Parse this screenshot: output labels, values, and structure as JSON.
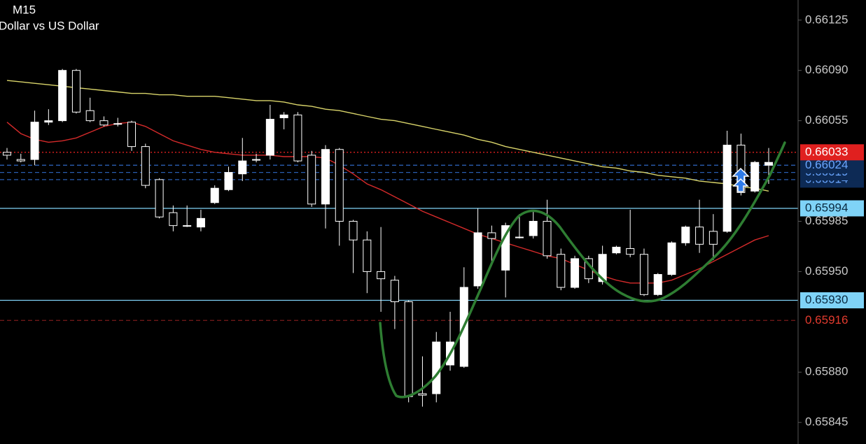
{
  "chart_data": {
    "type": "candlestick",
    "title": "M15",
    "subtitle": "Dollar vs US Dollar",
    "categories": [
      null,
      null,
      null,
      null,
      null,
      null,
      null,
      null,
      null,
      null,
      null,
      null,
      null,
      null,
      null,
      null,
      null,
      null,
      null,
      null,
      null,
      null,
      null,
      null,
      null,
      null,
      null,
      null,
      null,
      null,
      null,
      null,
      null,
      null,
      null,
      null,
      null,
      null,
      null,
      null,
      null,
      null,
      null,
      null,
      null,
      null,
      null,
      null,
      null,
      null,
      null,
      null,
      null,
      null,
      null,
      null
    ],
    "open": [
      0.66033,
      0.66028,
      0.66028,
      0.66054,
      0.66055,
      0.6609,
      0.66062,
      0.66055,
      0.66053,
      0.66054,
      0.66037,
      0.66014,
      0.65991,
      0.65982,
      0.65981,
      0.65998,
      0.66007,
      0.66018,
      0.66028,
      0.66031,
      0.66057,
      0.66059,
      0.66031,
      0.65997,
      0.66035,
      0.65985,
      0.65972,
      0.6595,
      0.65944,
      0.65929,
      0.65865,
      0.65865,
      0.65885,
      0.65884,
      0.6594,
      0.65977,
      0.65951,
      0.65974,
      0.65975,
      0.65985,
      0.65962,
      0.65939,
      0.65959,
      0.65943,
      0.65963,
      0.65966,
      0.65962,
      0.65934,
      0.65948,
      0.6597,
      0.65981,
      0.65978,
      0.65978,
      0.66038,
      0.66006,
      0.66024
    ],
    "high": [
      0.66036,
      0.66032,
      0.66062,
      0.66063,
      0.66091,
      0.66091,
      0.66071,
      0.66058,
      0.66057,
      0.66055,
      0.66039,
      0.66015,
      0.65996,
      0.65996,
      0.65993,
      0.6601,
      0.66023,
      0.66043,
      0.66032,
      0.66066,
      0.66061,
      0.66061,
      0.66034,
      0.66038,
      0.66036,
      0.65986,
      0.65978,
      0.65981,
      0.65947,
      0.6593,
      0.65891,
      0.65908,
      0.65922,
      0.65953,
      0.65994,
      0.65982,
      0.65984,
      0.6599,
      0.65993,
      0.66,
      0.65966,
      0.65961,
      0.65961,
      0.65968,
      0.65968,
      0.65993,
      0.65966,
      0.65949,
      0.65971,
      0.65982,
      0.66,
      0.6599,
      0.66048,
      0.66046,
      0.66027,
      0.66036
    ],
    "low": [
      0.66028,
      0.66026,
      0.66024,
      0.66052,
      0.66054,
      0.6606,
      0.66054,
      0.66051,
      0.66051,
      0.66034,
      0.66008,
      0.65987,
      0.65978,
      0.65981,
      0.65978,
      0.65997,
      0.66006,
      0.66013,
      0.66026,
      0.66028,
      0.66049,
      0.66026,
      0.65995,
      0.6598,
      0.65968,
      0.65949,
      0.65935,
      0.65922,
      0.6591,
      0.65859,
      0.65856,
      0.65859,
      0.65881,
      0.65883,
      0.65938,
      0.65954,
      0.65932,
      0.65973,
      0.65973,
      0.65959,
      0.65937,
      0.65938,
      0.65942,
      0.65941,
      0.65962,
      0.6596,
      0.65933,
      0.65933,
      0.65947,
      0.65968,
      0.65963,
      0.65958,
      0.65977,
      0.66003,
      0.66005,
      0.66011
    ],
    "close": [
      0.66031,
      0.66027,
      0.66054,
      0.66055,
      0.6609,
      0.66061,
      0.66055,
      0.66052,
      0.66053,
      0.66037,
      0.6601,
      0.65988,
      0.65982,
      0.65982,
      0.65987,
      0.66008,
      0.66019,
      0.66027,
      0.66028,
      0.66056,
      0.66059,
      0.66027,
      0.65997,
      0.66035,
      0.65985,
      0.65972,
      0.6595,
      0.65945,
      0.65929,
      0.65863,
      0.65864,
      0.65901,
      0.65901,
      0.65939,
      0.65977,
      0.65973,
      0.65982,
      0.65974,
      0.65985,
      0.65961,
      0.65939,
      0.65959,
      0.65945,
      0.65962,
      0.65967,
      0.65962,
      0.65934,
      0.65948,
      0.6597,
      0.65981,
      0.65969,
      0.65969,
      0.66038,
      0.66005,
      0.66026,
      0.66026
    ],
    "up_color": "#ffffff",
    "down_color": "#000000",
    "outline_color": "#ffffff",
    "lines": [
      {
        "color": "#d9d46a",
        "values": [
          0.66083,
          0.66082,
          0.66081,
          0.6608,
          0.66079,
          0.66078,
          0.66077,
          0.66076,
          0.66075,
          0.66074,
          0.66074,
          0.66073,
          0.66073,
          0.66072,
          0.66072,
          0.66072,
          0.66071,
          0.6607,
          0.66069,
          0.66069,
          0.66068,
          0.66066,
          0.66065,
          0.66063,
          0.66062,
          0.6606,
          0.66058,
          0.66056,
          0.66055,
          0.66053,
          0.66051,
          0.66049,
          0.66047,
          0.66045,
          0.66042,
          0.6604,
          0.66037,
          0.66035,
          0.66033,
          0.66031,
          0.66029,
          0.66027,
          0.66025,
          0.66023,
          0.66022,
          0.6602,
          0.66019,
          0.66017,
          0.66016,
          0.66015,
          0.66013,
          0.66012,
          0.66011,
          0.66009,
          0.66008,
          0.66006
        ]
      },
      {
        "color": "#d42a2a",
        "values": [
          0.66054,
          0.66046,
          0.66042,
          0.6604,
          0.66041,
          0.66043,
          0.66047,
          0.66051,
          0.66053,
          0.66054,
          0.66051,
          0.66046,
          0.66041,
          0.66038,
          0.66035,
          0.66033,
          0.66032,
          0.66031,
          0.66031,
          0.66031,
          0.6603,
          0.6603,
          0.6603,
          0.66029,
          0.66024,
          0.66018,
          0.66011,
          0.66007,
          0.66002,
          0.65997,
          0.65992,
          0.65988,
          0.65984,
          0.6598,
          0.65976,
          0.65973,
          0.6597,
          0.65967,
          0.65964,
          0.65961,
          0.65959,
          0.65955,
          0.65951,
          0.65947,
          0.65944,
          0.65942,
          0.65942,
          0.65942,
          0.65944,
          0.65948,
          0.65952,
          0.65957,
          0.65962,
          0.65967,
          0.65972,
          0.65975
        ]
      }
    ],
    "levels": [
      {
        "value": 0.66014,
        "line_color": "#2a5db0",
        "style": "dashed",
        "label_bg": "#0d2a55",
        "label_color": "#6aa6ff"
      },
      {
        "value": 0.66019,
        "line_color": "#2a5db0",
        "style": "dashed",
        "label_bg": "#0d2a55",
        "label_color": "#6aa6ff"
      },
      {
        "value": 0.66024,
        "line_color": "#2a5db0",
        "style": "dashed",
        "label_bg": "#0d2a55",
        "label_color": "#6aa6ff"
      },
      {
        "value": 0.66033,
        "line_color": "#e0201f",
        "style": "dotted",
        "label_bg": "#e0201f",
        "label_color": "#ffffff"
      },
      {
        "value": 0.65994,
        "line_color": "#7fd3f7",
        "style": "solid",
        "label_bg": "#7fd3f7",
        "label_color": "#0a2a40"
      },
      {
        "value": 0.6593,
        "label": "0.65930",
        "line_color": "#7fd3f7",
        "style": "solid",
        "label_bg": "#7fd3f7",
        "label_color": "#0a2a40"
      },
      {
        "value": 0.65916,
        "line_color": "#7a1c1c",
        "style": "dashed",
        "label_color": "#e23b2e"
      }
    ],
    "ylim": [
      0.6583,
      0.66139
    ],
    "yticks": [
      0.66125,
      {
        "value": 0.6609,
        "label": "0.66090"
      },
      0.66055,
      0.65985,
      {
        "value": 0.6595,
        "label": "0.65950"
      },
      {
        "value": 0.6588,
        "label": "0.65880"
      },
      0.65845
    ]
  }
}
